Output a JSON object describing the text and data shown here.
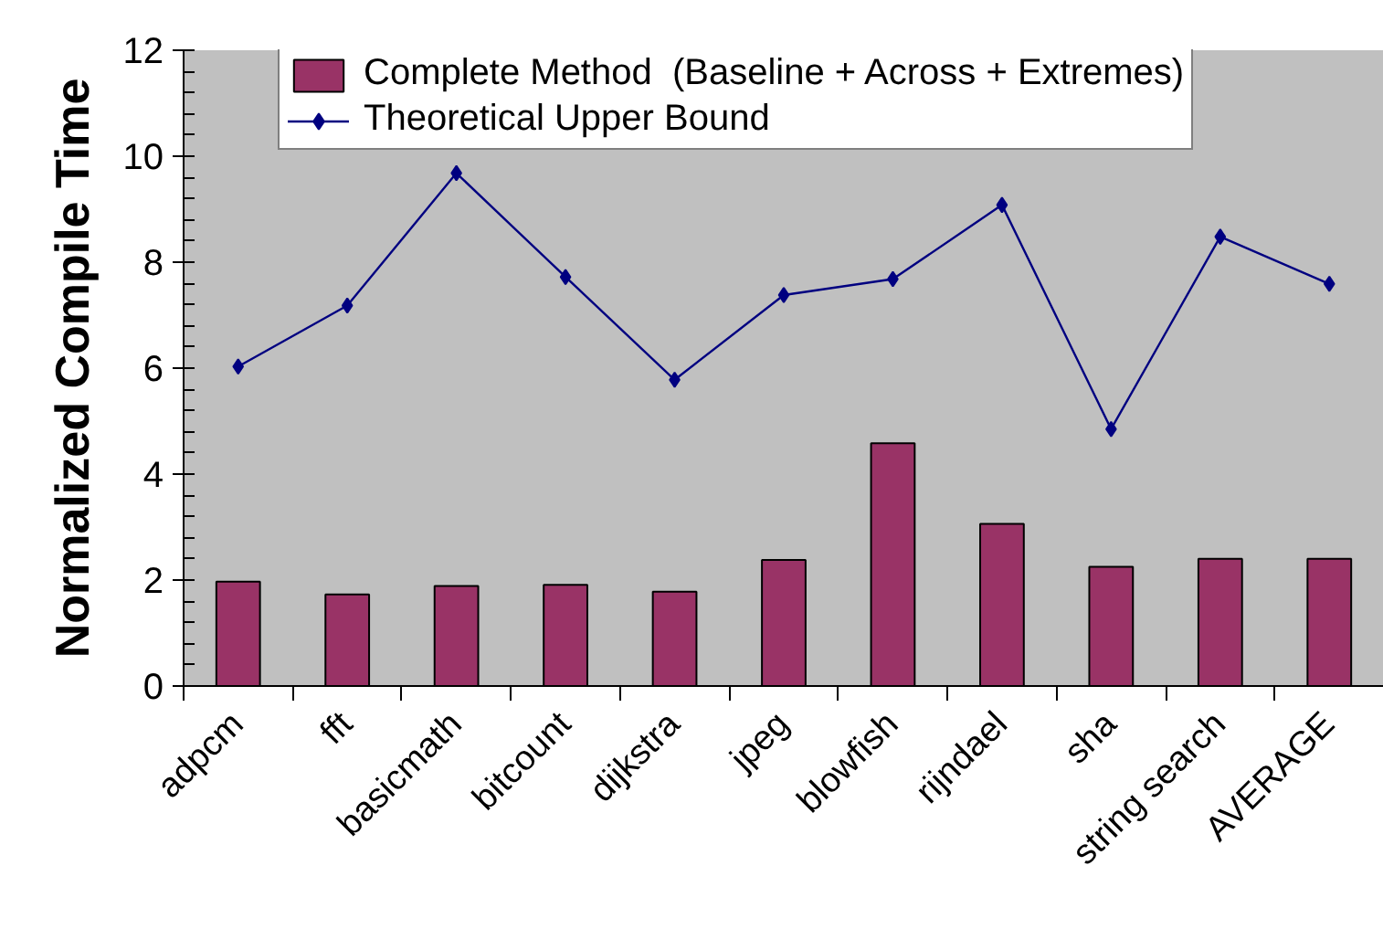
{
  "chart_data": {
    "type": "bar",
    "ylabel": "Normalized Compile Time",
    "categories": [
      "adpcm",
      "fft",
      "basicmath",
      "bitcount",
      "dijkstra",
      "jpeg",
      "blowfish",
      "rijndael",
      "sha",
      "string search",
      "AVERAGE"
    ],
    "series": [
      {
        "name": "Complete Method  (Baseline + Across + Extremes)",
        "color": "#993366",
        "values": [
          1.97,
          1.73,
          1.89,
          1.91,
          1.78,
          2.38,
          4.58,
          3.06,
          2.25,
          2.4,
          2.4
        ]
      },
      {
        "name": "Theoretical Upper Bound",
        "type": "line",
        "color": "#000080",
        "values": [
          6.03,
          7.18,
          9.68,
          7.72,
          5.78,
          7.38,
          7.68,
          9.08,
          4.85,
          8.48,
          7.59
        ]
      }
    ],
    "ylim": [
      0,
      12
    ],
    "yticks": [
      0,
      2,
      4,
      6,
      8,
      10,
      12
    ],
    "grid": false,
    "legend": "top",
    "marker": "diamond",
    "line_style": "solid"
  }
}
